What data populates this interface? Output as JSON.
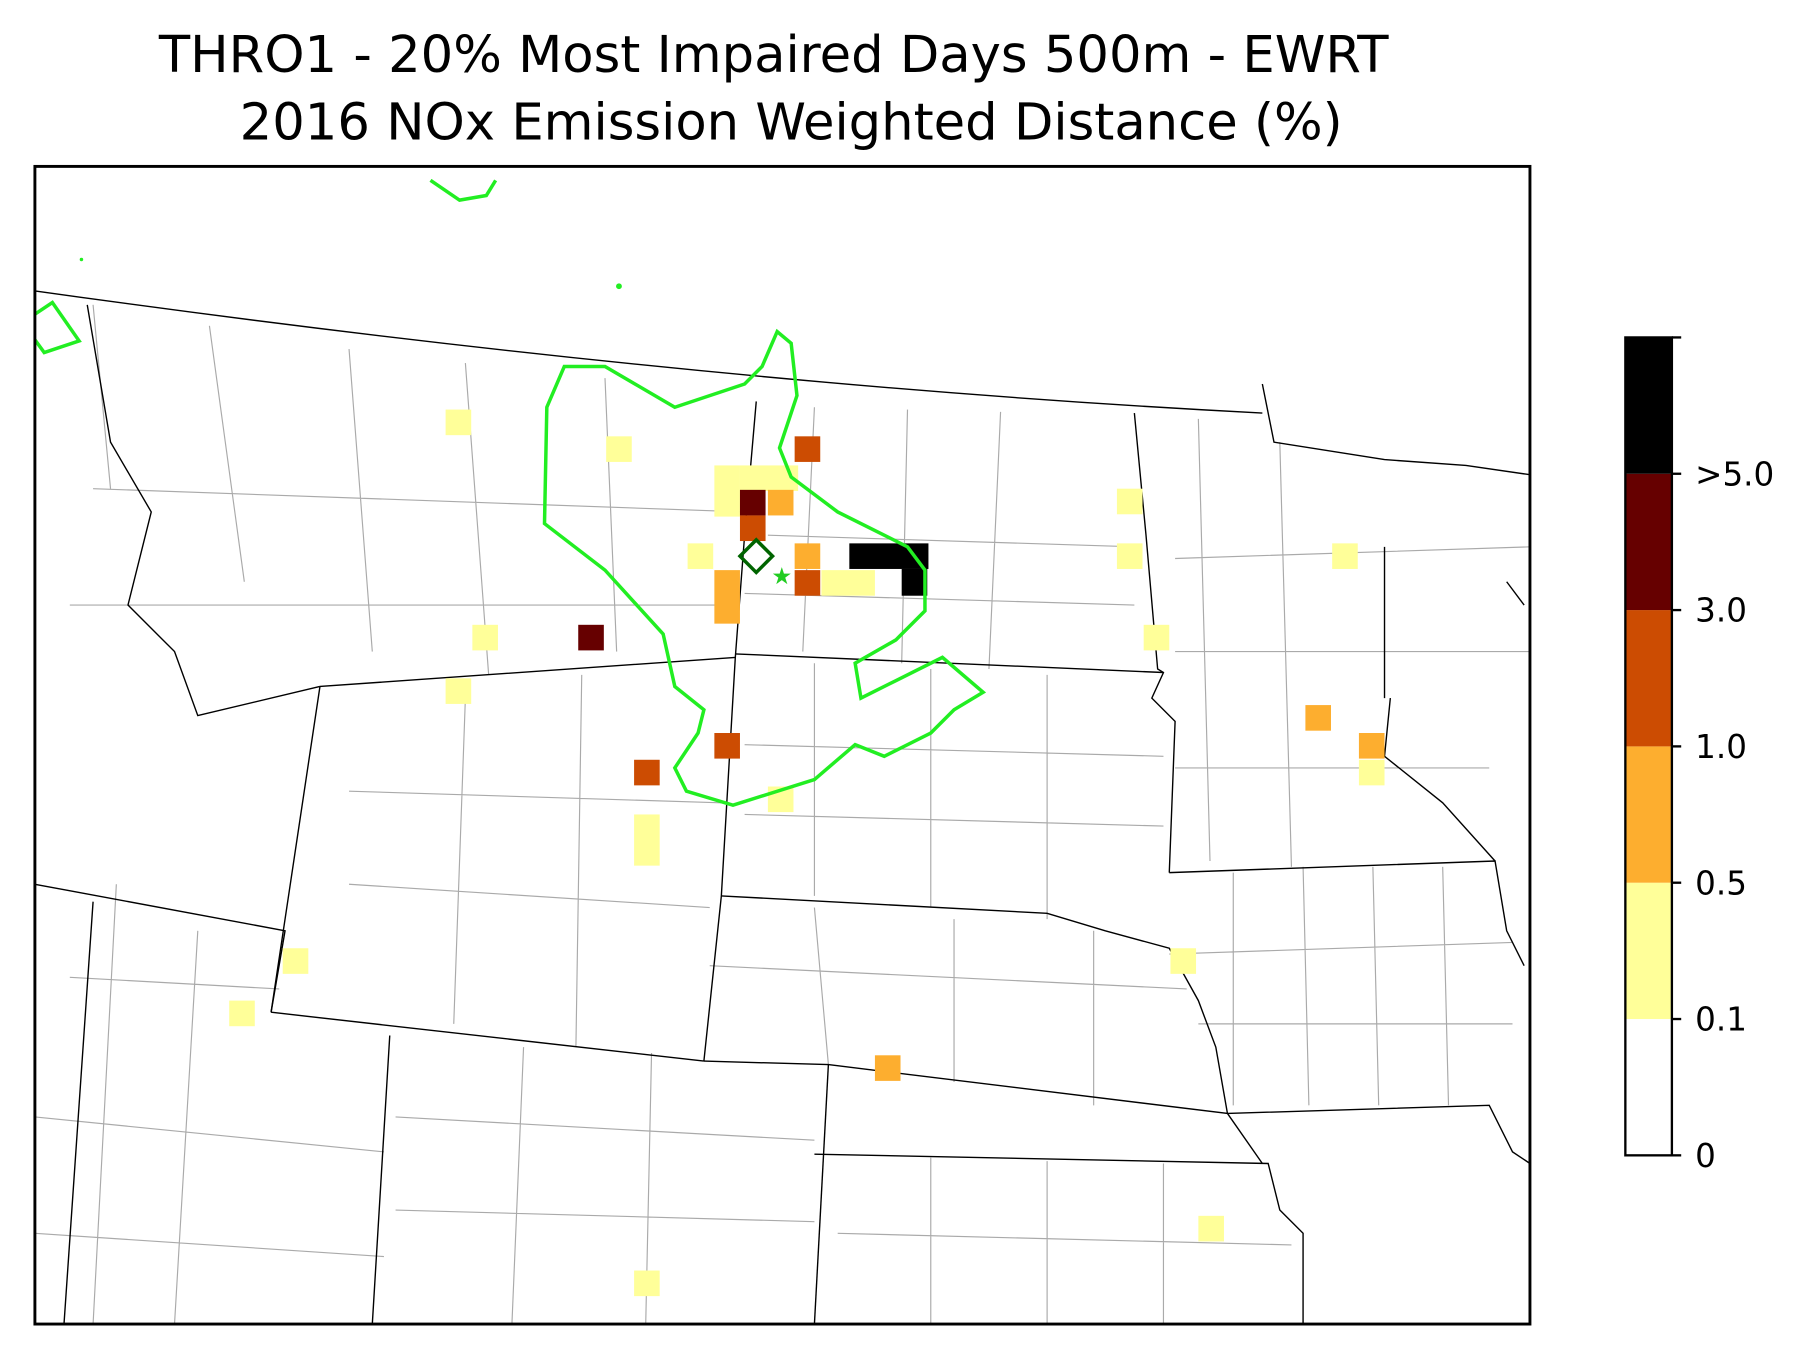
{
  "title": {
    "line1": "THRO1 - 20% Most Impaired Days 500m - EWRT",
    "line2": "2016 NOx Emission Weighted Distance (%)"
  },
  "colorbar": {
    "labels": [
      "0",
      "0.1",
      "0.5",
      "1.0",
      "3.0",
      ">5.0"
    ],
    "colors": [
      "#ffffff",
      "#ffff99",
      "#fdae2f",
      "#cc4c02",
      "#660000",
      "#000000"
    ]
  }
}
